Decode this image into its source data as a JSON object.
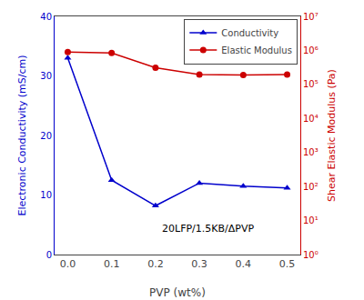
{
  "chart_data": {
    "type": "line",
    "xlabel": "PVP (wt%)",
    "ylabel": "Electronic Conductivity (mS/cm)",
    "y2label": "Shear Elastic Modulus (Pa)",
    "x": [
      0.0,
      0.1,
      0.2,
      0.3,
      0.4,
      0.5
    ],
    "series": [
      {
        "name": "Conductivity",
        "color": "#0000cc",
        "marker": "triangle-up",
        "values": [
          33.0,
          12.5,
          8.2,
          12.0,
          11.5,
          11.2
        ]
      },
      {
        "name": "Elastic Modulus",
        "color": "#cc0000",
        "marker": "circle",
        "axis": "y2",
        "values": [
          900000,
          840000,
          310000,
          195000,
          190000,
          195000
        ]
      }
    ],
    "xlim": [
      -0.03,
      0.53
    ],
    "xticks": [
      {
        "value": 0.0,
        "label": "0.0"
      },
      0.1,
      0.2,
      0.3,
      0.4,
      0.5
    ],
    "ylim": [
      0,
      40
    ],
    "yticks": [
      0,
      10,
      20,
      30,
      40
    ],
    "y2lim": [
      1.0,
      10000000.0
    ],
    "y2ticks": [
      {
        "value": 1,
        "label": "10⁰"
      },
      {
        "value": 10,
        "label": "10¹"
      },
      {
        "value": 100,
        "label": "10²"
      },
      {
        "value": 1000,
        "label": "10³"
      },
      {
        "value": 10000,
        "label": "10⁴"
      },
      {
        "value": 100000,
        "label": "10⁵"
      },
      {
        "value": 1000000,
        "label": "10⁶"
      },
      {
        "value": 10000000,
        "label": "10⁷"
      }
    ],
    "log": "y2",
    "annotations": [
      {
        "text": "20LFP/1.5KB/ΔPVP",
        "x": 0.21,
        "y": 3.0
      }
    ],
    "legend": "upper right",
    "grid": false
  }
}
